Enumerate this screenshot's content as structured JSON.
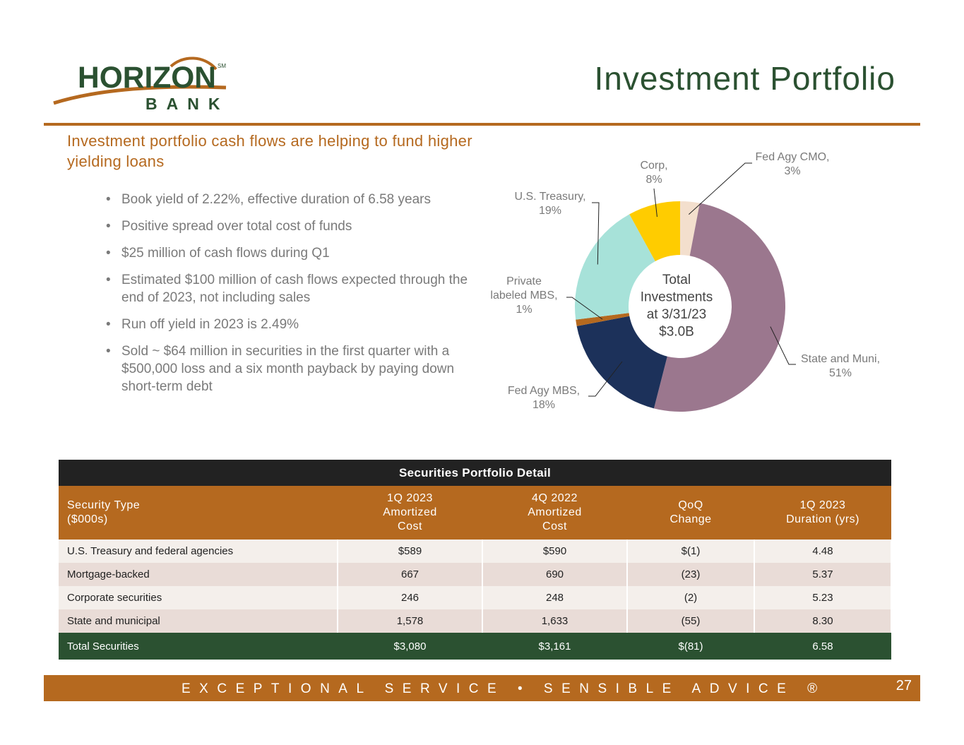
{
  "header": {
    "logo_text": "HORIZON",
    "logo_subtext": "BANK",
    "logo_mark": "SM",
    "title": "Investment Portfolio"
  },
  "subtitle": "Investment portfolio cash flows are helping to fund higher yielding loans",
  "bullets": [
    "Book yield of 2.22%, effective duration of 6.58 years",
    "Positive spread over total cost of funds",
    "$25 million of cash flows during Q1",
    "Estimated $100 million of cash flows expected through the end of 2023, not including sales",
    "Run off yield in 2023 is 2.49%",
    "Sold ~ $64 million in securities in the first quarter with a $500,000 loss and a six month payback by paying down short-term debt"
  ],
  "bullet_glyph": "•",
  "chart_data": {
    "type": "pie",
    "donut": true,
    "center_label": [
      "Total",
      "Investments",
      "at 3/31/23",
      "$3.0B"
    ],
    "slices": [
      {
        "label": "Fed Agy CMO,",
        "pct_label": "3%",
        "value": 3,
        "color": "#f3dfcd"
      },
      {
        "label": "State and Muni,",
        "pct_label": "51%",
        "value": 51,
        "color": "#9b778e"
      },
      {
        "label": "Fed Agy MBS,",
        "pct_label": "18%",
        "value": 18,
        "color": "#1c315a"
      },
      {
        "label": "Private labeled MBS,",
        "pct_label": "1%",
        "value": 1,
        "color": "#b5691f"
      },
      {
        "label": "U.S. Treasury,",
        "pct_label": "19%",
        "value": 19,
        "color": "#a7e2d9"
      },
      {
        "label": "Corp,",
        "pct_label": "8%",
        "value": 8,
        "color": "#ffcc00"
      }
    ]
  },
  "table": {
    "title": "Securities Portfolio Detail",
    "headers": [
      [
        "Security Type",
        "($000s)"
      ],
      [
        "1Q 2023",
        "Amortized",
        "Cost"
      ],
      [
        "4Q 2022",
        "Amortized",
        "Cost"
      ],
      [
        "QoQ",
        "Change"
      ],
      [
        "1Q 2023",
        "Duration (yrs)"
      ]
    ],
    "rows": [
      [
        "U.S. Treasury and federal agencies",
        "$589",
        "$590",
        "$(1)",
        "4.48"
      ],
      [
        "Mortgage-backed",
        "667",
        "690",
        "(23)",
        "5.37"
      ],
      [
        "Corporate securities",
        "246",
        "248",
        "(2)",
        "5.23"
      ],
      [
        "State and municipal",
        "1,578",
        "1,633",
        "(55)",
        "8.30"
      ]
    ],
    "total": [
      "Total Securities",
      "$3,080",
      "$3,161",
      "$(81)",
      "6.58"
    ]
  },
  "footer": {
    "tagline": "EXCEPTIONAL SERVICE • SENSIBLE ADVICE ®",
    "page_number": "27"
  }
}
